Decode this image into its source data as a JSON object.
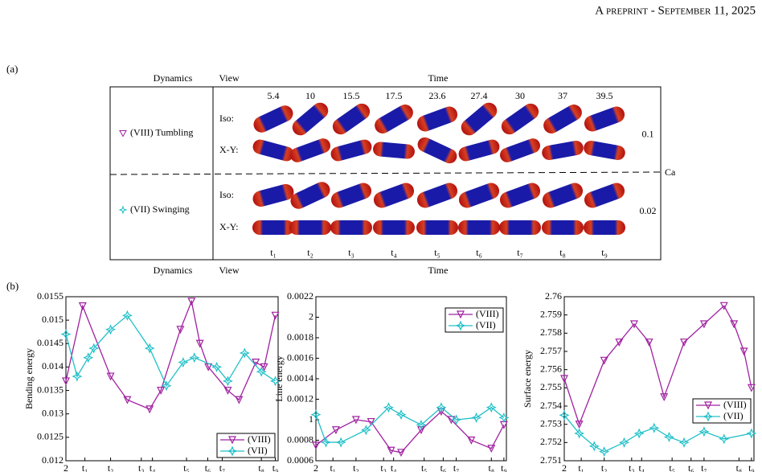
{
  "header": {
    "title": "A preprint - September 11, 2025"
  },
  "panel_a": {
    "label": "(a)",
    "columns": [
      "Dynamics",
      "View",
      "Time"
    ],
    "footer": [
      "Dynamics",
      "View",
      "Time"
    ],
    "times": [
      "5.4",
      "10",
      "15.5",
      "17.5",
      "23.6",
      "27.4",
      "30",
      "37",
      "39.5"
    ],
    "time_labels": [
      "t₁",
      "t₂",
      "t₃",
      "t₄",
      "t₅",
      "t₆",
      "t₇",
      "t₈",
      "t₉"
    ],
    "rows": [
      {
        "dynamics": "(VIII) Tumbling",
        "views": [
          "Iso:",
          "X-Y:"
        ],
        "ca": "0.1"
      },
      {
        "dynamics": "(VII) Swinging",
        "views": [
          "Iso:",
          "X-Y:"
        ],
        "ca": "0.02"
      }
    ],
    "ca_label": "Ca"
  },
  "panel_b": {
    "label": "(b)"
  },
  "chart_data": [
    {
      "type": "line",
      "xlabel": "Time",
      "ylabel": "Bending energy",
      "xlim": [
        2,
        40
      ],
      "ylim": [
        0.012,
        0.0155
      ],
      "xticks": [
        2,
        {
          "value": 5.4,
          "label": "t₁"
        },
        {
          "value": 10,
          "label": "t₂"
        },
        {
          "value": 15.5,
          "label": "t₃"
        },
        {
          "value": 17.5,
          "label": "t₄"
        },
        {
          "value": 23.6,
          "label": "t₅"
        },
        {
          "value": 27.4,
          "label": "t₆"
        },
        {
          "value": 30,
          "label": "t₇"
        },
        {
          "value": 37,
          "label": "t₈"
        },
        {
          "value": 39.5,
          "label": "t₉"
        }
      ],
      "yticks": [
        0.012,
        0.0125,
        0.013,
        0.0135,
        0.014,
        0.0145,
        0.015,
        0.0155
      ],
      "legend": "lower right",
      "series": [
        {
          "name": "(VIII)",
          "color": "#a020a0",
          "x": [
            2,
            5,
            10,
            13,
            17,
            19,
            22.5,
            24.5,
            26,
            27.5,
            31,
            33,
            36,
            37.5,
            39.5
          ],
          "values": [
            0.0137,
            0.0153,
            0.0138,
            0.0133,
            0.0131,
            0.0135,
            0.0148,
            0.0154,
            0.0145,
            0.014,
            0.0135,
            0.0133,
            0.0141,
            0.014,
            0.0151
          ]
        },
        {
          "name": "(VII)",
          "color": "#20c0c8",
          "x": [
            2,
            4,
            6,
            7,
            10,
            13,
            17,
            20,
            23,
            25,
            29,
            31,
            34,
            37,
            39.5
          ],
          "values": [
            0.0147,
            0.0138,
            0.0142,
            0.0144,
            0.0148,
            0.0151,
            0.0144,
            0.0136,
            0.0141,
            0.0142,
            0.014,
            0.0137,
            0.0143,
            0.0139,
            0.0137
          ]
        }
      ]
    },
    {
      "type": "line",
      "xlabel": "Time",
      "ylabel": "Line energy",
      "xlim": [
        2,
        40
      ],
      "ylim": [
        0.0006,
        0.0022
      ],
      "xticks": [
        2,
        {
          "value": 5.4,
          "label": "t₁"
        },
        {
          "value": 10,
          "label": "t₂"
        },
        {
          "value": 15.5,
          "label": "t₃"
        },
        {
          "value": 17.5,
          "label": "t₄"
        },
        {
          "value": 23.6,
          "label": "t₅"
        },
        {
          "value": 27.4,
          "label": "t₆"
        },
        {
          "value": 30,
          "label": "t₇"
        },
        {
          "value": 37,
          "label": "t₈"
        },
        {
          "value": 39.5,
          "label": "t₉"
        }
      ],
      "yticks": [
        0.0006,
        0.0008,
        {
          "value": 0.001,
          "label": "1"
        },
        0.0012,
        0.0014,
        0.0016,
        0.0018,
        {
          "value": 0.002,
          "label": "2"
        },
        0.0022
      ],
      "legend": "upper right",
      "series": [
        {
          "name": "(VIII)",
          "color": "#a020a0",
          "x": [
            2,
            6,
            10,
            13,
            17,
            19,
            23,
            27,
            29,
            33,
            37,
            39.5
          ],
          "values": [
            0.00075,
            0.0009,
            0.001,
            0.00098,
            0.0007,
            0.00068,
            0.0009,
            0.00108,
            0.001,
            0.0008,
            0.00072,
            0.00095
          ]
        },
        {
          "name": "(VII)",
          "color": "#20c0c8",
          "x": [
            2,
            4,
            7,
            12,
            16.5,
            19,
            23,
            27,
            30,
            34,
            37,
            39.5
          ],
          "values": [
            0.00105,
            0.00078,
            0.00078,
            0.0009,
            0.00112,
            0.00105,
            0.00095,
            0.00112,
            0.001,
            0.00102,
            0.00112,
            0.00102
          ]
        }
      ]
    },
    {
      "type": "line",
      "xlabel": "Time",
      "ylabel": "Surface energy",
      "xlim": [
        2,
        40
      ],
      "ylim": [
        2.751,
        2.76
      ],
      "xticks": [
        2,
        {
          "value": 5.4,
          "label": "t₁"
        },
        {
          "value": 10,
          "label": "t₂"
        },
        {
          "value": 15.5,
          "label": "t₃"
        },
        {
          "value": 17.5,
          "label": "t₄"
        },
        {
          "value": 23.6,
          "label": "t₅"
        },
        {
          "value": 27.4,
          "label": "t₆"
        },
        {
          "value": 30,
          "label": "t₇"
        },
        {
          "value": 37,
          "label": "t₈"
        },
        {
          "value": 39.5,
          "label": "t₉"
        }
      ],
      "yticks": [
        2.751,
        2.752,
        2.753,
        2.754,
        2.755,
        2.756,
        2.757,
        2.758,
        2.759,
        2.76
      ],
      "legend": "center right",
      "series": [
        {
          "name": "(VIII)",
          "color": "#a020a0",
          "x": [
            2,
            5,
            10,
            13,
            16,
            19,
            22,
            26,
            30,
            34,
            36,
            38,
            39.5
          ],
          "values": [
            2.7555,
            2.753,
            2.7565,
            2.7575,
            2.7585,
            2.7575,
            2.7545,
            2.7575,
            2.7585,
            2.7595,
            2.7585,
            2.757,
            2.755
          ]
        },
        {
          "name": "(VII)",
          "color": "#20c0c8",
          "x": [
            2,
            5,
            8,
            10,
            14,
            17,
            20,
            23,
            26,
            30,
            34,
            39.5
          ],
          "values": [
            2.7535,
            2.7525,
            2.7518,
            2.7515,
            2.752,
            2.7525,
            2.7528,
            2.7523,
            2.752,
            2.7526,
            2.7522,
            2.7525
          ]
        }
      ]
    }
  ]
}
